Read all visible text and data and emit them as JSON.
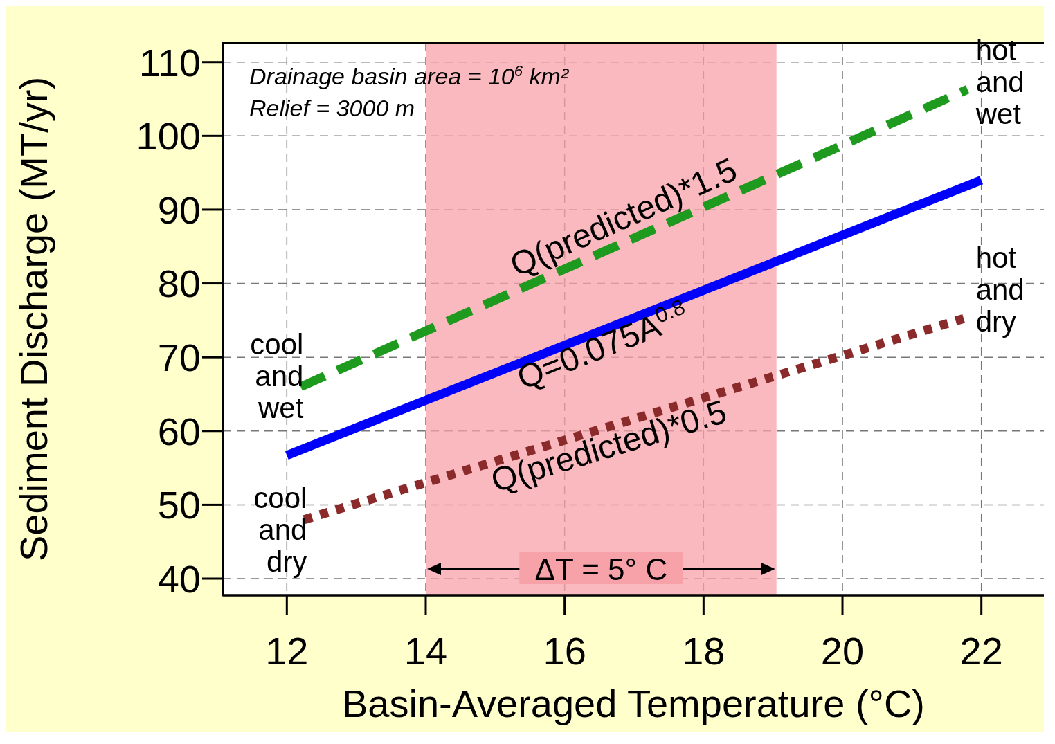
{
  "chart_data": {
    "type": "line",
    "xlabel": "Basin-Averaged Temperature (°C)",
    "ylabel": "Sediment Discharge (MT/yr)",
    "xlim": [
      11.08,
      22.9
    ],
    "ylim": [
      37.75,
      112.6
    ],
    "xticks": [
      12,
      14,
      16,
      18,
      20,
      22
    ],
    "yticks": [
      40,
      50,
      60,
      70,
      80,
      90,
      100,
      110
    ],
    "grid": true,
    "marker": "none",
    "series": [
      {
        "name": "Q(predicted)*1.5",
        "color": "#1e9a1e",
        "line_style": "dashed",
        "x": [
          12.2,
          21.8
        ],
        "values": [
          66,
          106.3
        ]
      },
      {
        "name": "Q=0.075A$^{0.8}$",
        "color": "#0000ff",
        "line_style": "solid",
        "x": [
          12,
          22
        ],
        "values": [
          56.7,
          94
        ]
      },
      {
        "name": "Q(predicted)*0.5",
        "color": "#8b2a2a",
        "line_style": "dotted",
        "x": [
          12.25,
          21.8
        ],
        "values": [
          48,
          75.4
        ]
      }
    ],
    "bands": [
      {
        "axis": "x",
        "from": 14,
        "to": 19.05,
        "label": "ΔT = 5° C",
        "color": "#f7a1a8"
      }
    ],
    "annotations": [
      "Drainage basin area = 10$^{6}$ km²",
      "Relief = 3000 m",
      "hot and wet",
      "hot and dry",
      "cool and wet",
      "cool and dry"
    ]
  }
}
